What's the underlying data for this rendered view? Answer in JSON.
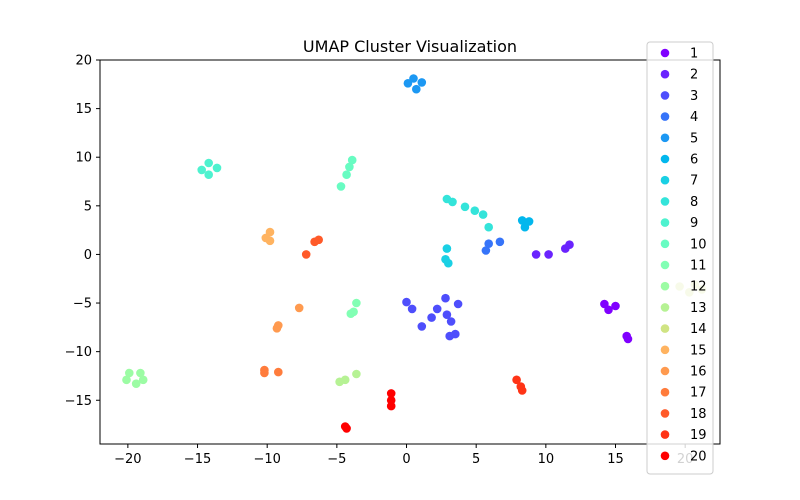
{
  "chart_data": {
    "type": "scatter",
    "title": "UMAP Cluster Visualization",
    "xlabel": "",
    "ylabel": "",
    "xlim": [
      -22,
      22.5
    ],
    "ylim": [
      -19.5,
      20
    ],
    "xticks": [
      -20,
      -15,
      -10,
      -5,
      0,
      5,
      10,
      15,
      20
    ],
    "yticks": [
      20,
      15,
      10,
      5,
      0,
      -5,
      -10,
      -15
    ],
    "grid": false,
    "legend_placement": "right (outside, overlapping plot edge)",
    "series": [
      {
        "name": "1",
        "color": "#8000ff",
        "points": [
          [
            14.2,
            -5.1
          ],
          [
            14.5,
            -5.7
          ],
          [
            15.0,
            -5.3
          ],
          [
            15.8,
            -8.4
          ],
          [
            15.9,
            -8.7
          ]
        ]
      },
      {
        "name": "2",
        "color": "#6a23fe",
        "points": [
          [
            9.3,
            0.0
          ],
          [
            10.2,
            0.0
          ],
          [
            11.4,
            0.6
          ],
          [
            11.7,
            1.0
          ]
        ]
      },
      {
        "name": "3",
        "color": "#4e4efc",
        "points": [
          [
            0.0,
            -4.9
          ],
          [
            0.4,
            -5.6
          ],
          [
            1.1,
            -7.4
          ],
          [
            1.8,
            -6.5
          ],
          [
            2.2,
            -5.6
          ],
          [
            2.8,
            -4.5
          ],
          [
            2.9,
            -6.2
          ],
          [
            3.1,
            -8.4
          ],
          [
            3.2,
            -6.9
          ],
          [
            3.5,
            -8.2
          ],
          [
            3.7,
            -5.1
          ]
        ]
      },
      {
        "name": "4",
        "color": "#3674f9",
        "points": [
          [
            5.7,
            0.4
          ],
          [
            5.9,
            1.1
          ],
          [
            6.7,
            1.3
          ]
        ]
      },
      {
        "name": "5",
        "color": "#1c98f3",
        "points": [
          [
            0.1,
            17.6
          ],
          [
            0.5,
            18.1
          ],
          [
            0.7,
            17.0
          ],
          [
            1.1,
            17.7
          ]
        ]
      },
      {
        "name": "6",
        "color": "#02b7ed",
        "points": [
          [
            8.3,
            3.5
          ],
          [
            8.8,
            3.4
          ],
          [
            8.5,
            2.8
          ]
        ]
      },
      {
        "name": "7",
        "color": "#1ad0e4",
        "points": [
          [
            2.8,
            -0.5
          ],
          [
            3.0,
            -0.9
          ],
          [
            2.9,
            0.6
          ]
        ]
      },
      {
        "name": "8",
        "color": "#34e4da",
        "points": [
          [
            2.9,
            5.7
          ],
          [
            3.3,
            5.4
          ],
          [
            4.2,
            4.9
          ],
          [
            4.9,
            4.5
          ],
          [
            5.5,
            4.1
          ],
          [
            5.9,
            2.8
          ]
        ]
      },
      {
        "name": "9",
        "color": "#4ef2cf",
        "points": [
          [
            -14.7,
            8.7
          ],
          [
            -14.2,
            9.4
          ],
          [
            -14.2,
            8.2
          ],
          [
            -13.6,
            8.9
          ]
        ]
      },
      {
        "name": "10",
        "color": "#68fcc2",
        "points": [
          [
            -3.9,
            9.7
          ],
          [
            -4.1,
            9.0
          ],
          [
            -4.3,
            8.2
          ],
          [
            -4.7,
            7.0
          ]
        ]
      },
      {
        "name": "11",
        "color": "#82ffb4",
        "points": [
          [
            -3.6,
            -5.0
          ],
          [
            -3.8,
            -5.9
          ],
          [
            -4.0,
            -6.1
          ]
        ]
      },
      {
        "name": "12",
        "color": "#9cfca4",
        "points": [
          [
            -19.9,
            -12.2
          ],
          [
            -20.1,
            -12.9
          ],
          [
            -19.4,
            -13.3
          ],
          [
            -19.1,
            -12.2
          ],
          [
            -18.9,
            -12.9
          ]
        ]
      },
      {
        "name": "13",
        "color": "#b6f294",
        "points": [
          [
            -4.8,
            -13.1
          ],
          [
            -4.4,
            -12.9
          ],
          [
            -3.6,
            -12.3
          ]
        ]
      },
      {
        "name": "14",
        "color": "#d0e483",
        "points": [
          [
            19.6,
            -3.3
          ],
          [
            20.3,
            -3.9
          ],
          [
            20.7,
            -3.1
          ],
          [
            21.2,
            -3.6
          ]
        ]
      },
      {
        "name": "15",
        "color": "#ffb360",
        "points": [
          [
            -10.1,
            1.7
          ],
          [
            -9.8,
            2.3
          ],
          [
            -9.8,
            1.4
          ]
        ]
      },
      {
        "name": "16",
        "color": "#ff9a4f",
        "points": [
          [
            -7.7,
            -5.5
          ],
          [
            -9.2,
            -7.3
          ],
          [
            -9.3,
            -7.6
          ]
        ]
      },
      {
        "name": "17",
        "color": "#ff7c3c",
        "points": [
          [
            -10.2,
            -11.9
          ],
          [
            -10.2,
            -12.2
          ],
          [
            -9.2,
            -12.1
          ]
        ]
      },
      {
        "name": "18",
        "color": "#ff5a29",
        "points": [
          [
            -7.2,
            0.0
          ],
          [
            -6.6,
            1.3
          ],
          [
            -6.3,
            1.5
          ]
        ]
      },
      {
        "name": "19",
        "color": "#ff3416",
        "points": [
          [
            7.9,
            -12.9
          ],
          [
            8.2,
            -13.6
          ],
          [
            8.3,
            -14.0
          ]
        ]
      },
      {
        "name": "20",
        "color": "#ff0000",
        "points": [
          [
            -1.1,
            -14.3
          ],
          [
            -1.1,
            -15.0
          ],
          [
            -1.1,
            -15.6
          ],
          [
            -4.4,
            -17.7
          ],
          [
            -4.3,
            -17.9
          ]
        ]
      }
    ]
  }
}
